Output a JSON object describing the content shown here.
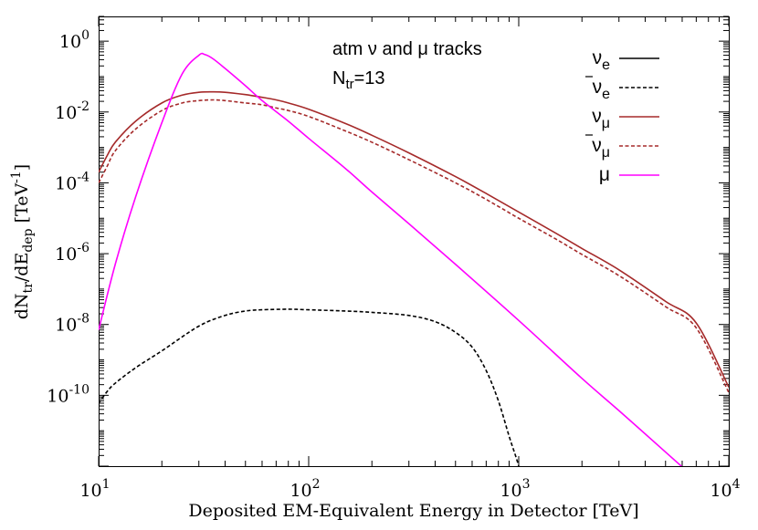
{
  "chart_data": {
    "type": "line",
    "title": "atm ν and μ tracks",
    "subtitle": {
      "base": "N",
      "sub": "tr",
      "rest": "=13"
    },
    "xlabel": "Deposited EM-Equivalent Energy in Detector [TeV]",
    "ylabel": {
      "p1": "dN",
      "sub1": "tr",
      "p2": "/dE",
      "sub2": "dep",
      "p3": " [TeV",
      "sup": "-1",
      "p4": "]"
    },
    "x_scale": "log",
    "y_scale": "log",
    "xlim": [
      10,
      10000
    ],
    "ylim": [
      1e-12,
      5
    ],
    "x_ticks": [
      {
        "value": 10,
        "base": "10",
        "exp": "1"
      },
      {
        "value": 100,
        "base": "10",
        "exp": "2"
      },
      {
        "value": 1000,
        "base": "10",
        "exp": "3"
      },
      {
        "value": 10000,
        "base": "10",
        "exp": "4"
      }
    ],
    "y_ticks": [
      {
        "value": 1,
        "base": "10",
        "exp": "0"
      },
      {
        "value": 0.01,
        "base": "10",
        "exp": "-2"
      },
      {
        "value": 0.0001,
        "base": "10",
        "exp": "-4"
      },
      {
        "value": 1e-06,
        "base": "10",
        "exp": "-6"
      },
      {
        "value": 1e-08,
        "base": "10",
        "exp": "-8"
      },
      {
        "value": 1e-10,
        "base": "10",
        "exp": "-10"
      }
    ],
    "legend_position": "top-right",
    "series": [
      {
        "name": "ν_e",
        "legend": {
          "base": "ν",
          "sub": "e",
          "bar": false
        },
        "color": "#000000",
        "dash": "solid",
        "x": [],
        "y": []
      },
      {
        "name": "ν̄_e",
        "legend": {
          "base": "ν",
          "sub": "e",
          "bar": true
        },
        "color": "#000000",
        "dash": "dashed",
        "x": [
          10,
          11,
          12,
          15,
          20,
          30,
          40,
          50,
          60,
          80,
          100,
          150,
          200,
          300,
          400,
          500,
          600,
          700,
          800,
          900,
          1000,
          1100
        ],
        "y": [
          6e-11,
          1.3e-10,
          2.2e-10,
          6e-10,
          1.8e-09,
          9e-09,
          1.8e-08,
          2.4e-08,
          2.6e-08,
          2.7e-08,
          2.6e-08,
          2.4e-08,
          2.2e-08,
          1.8e-08,
          1.2e-08,
          6e-09,
          2.3e-09,
          5e-10,
          7e-11,
          7e-12,
          1e-12,
          1e-13
        ]
      },
      {
        "name": "ν_μ",
        "legend": {
          "base": "ν",
          "sub": "μ",
          "bar": false
        },
        "color": "#a52a2a",
        "dash": "solid",
        "x": [
          10,
          11,
          12,
          15,
          20,
          25,
          30,
          35,
          40,
          50,
          60,
          70,
          80,
          100,
          150,
          200,
          300,
          500,
          700,
          1000,
          1500,
          2000,
          3000,
          5000,
          7000,
          10000
        ],
        "y": [
          0.0002,
          0.0006,
          0.0014,
          0.0055,
          0.018,
          0.03,
          0.036,
          0.037,
          0.036,
          0.031,
          0.026,
          0.022,
          0.018,
          0.012,
          0.0047,
          0.0022,
          0.0007,
          0.00015,
          5e-05,
          1.5e-05,
          3.8e-06,
          1.4e-06,
          3.5e-07,
          4.5e-08,
          1.1e-08,
          1.7e-10
        ]
      },
      {
        "name": "ν̄_μ",
        "legend": {
          "base": "ν",
          "sub": "μ",
          "bar": true
        },
        "color": "#a52a2a",
        "dash": "dashed",
        "x": [
          10,
          11,
          12,
          15,
          20,
          25,
          30,
          35,
          40,
          50,
          60,
          70,
          80,
          100,
          150,
          200,
          300,
          500,
          700,
          1000,
          1500,
          2000,
          3000,
          5000,
          7000,
          10000
        ],
        "y": [
          0.0001,
          0.0003,
          0.0008,
          0.0033,
          0.011,
          0.018,
          0.021,
          0.022,
          0.021,
          0.018,
          0.016,
          0.013,
          0.011,
          0.0075,
          0.0029,
          0.0014,
          0.00045,
          0.0001,
          3.4e-05,
          1e-05,
          2.6e-06,
          9.5e-07,
          2.4e-07,
          3.2e-08,
          8e-09,
          1.2e-10
        ]
      },
      {
        "name": "μ",
        "legend": {
          "base": "μ",
          "sub": "",
          "bar": false
        },
        "color": "#ff00ff",
        "dash": "solid",
        "x": [
          10,
          12,
          15,
          20,
          25,
          30,
          32,
          35,
          40,
          50,
          60,
          80,
          100,
          150,
          200,
          300,
          500,
          1000,
          2000,
          3000,
          5000,
          6200
        ],
        "y": [
          7e-09,
          5e-07,
          4e-05,
          0.005,
          0.12,
          0.4,
          0.42,
          0.32,
          0.17,
          0.055,
          0.021,
          0.0055,
          0.0018,
          0.00025,
          5.5e-05,
          7e-06,
          5e-07,
          1.3e-08,
          3e-10,
          3.7e-11,
          2.5e-12,
          8e-13
        ]
      }
    ]
  }
}
